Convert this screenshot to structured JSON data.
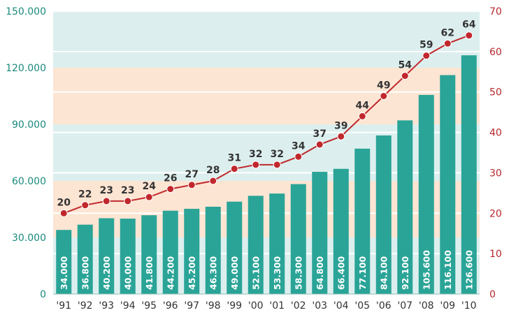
{
  "chart_data": {
    "type": "bar+line",
    "categories": [
      "'91",
      "'92",
      "'93",
      "'94",
      "'95",
      "'96",
      "'97",
      "'98",
      "'99",
      "'00",
      "'01",
      "'02",
      "'03",
      "'04",
      "'05",
      "'06",
      "'07",
      "'08",
      "'09",
      "'10"
    ],
    "bar_series": {
      "name": "bars",
      "values": [
        34000,
        36800,
        40200,
        40000,
        41800,
        44200,
        45200,
        46300,
        49000,
        52100,
        53300,
        58300,
        64800,
        66400,
        77100,
        84100,
        92100,
        105600,
        116100,
        126600
      ],
      "labels": [
        "34.000",
        "36.800",
        "40.200",
        "40.000",
        "41.800",
        "44.200",
        "45.200",
        "46.300",
        "49.000",
        "52.100",
        "53.300",
        "58.300",
        "64.800",
        "66.400",
        "77.100",
        "84.100",
        "92.100",
        "105.600",
        "116.100",
        "126.600"
      ],
      "color": "#2aa497"
    },
    "line_series": {
      "name": "line",
      "values": [
        20,
        22,
        23,
        23,
        24,
        26,
        27,
        28,
        31,
        32,
        32,
        34,
        37,
        39,
        44,
        49,
        54,
        59,
        62,
        64
      ],
      "labels": [
        "20",
        "22",
        "23",
        "23",
        "24",
        "26",
        "27",
        "28",
        "31",
        "32",
        "32",
        "34",
        "37",
        "39",
        "44",
        "49",
        "54",
        "59",
        "62",
        "64"
      ],
      "color": "#c0282d"
    },
    "left_axis": {
      "ylim": [
        0,
        150000
      ],
      "ticks": [
        0,
        30000,
        60000,
        90000,
        120000,
        150000
      ],
      "tick_labels": [
        "0",
        "30.000",
        "60.000",
        "90.000",
        "120.000",
        "150.000"
      ],
      "color": "#1a8a7e"
    },
    "right_axis": {
      "ylim": [
        0,
        70
      ],
      "ticks": [
        0,
        10,
        20,
        30,
        40,
        50,
        60,
        70
      ],
      "tick_labels": [
        "0",
        "10",
        "20",
        "30",
        "40",
        "50",
        "60",
        "70"
      ],
      "color": "#b7282e"
    },
    "bands": {
      "teal": "#dcefee",
      "peach": "#fde5d3"
    },
    "title": "",
    "xlabel": "",
    "ylabel": ""
  }
}
